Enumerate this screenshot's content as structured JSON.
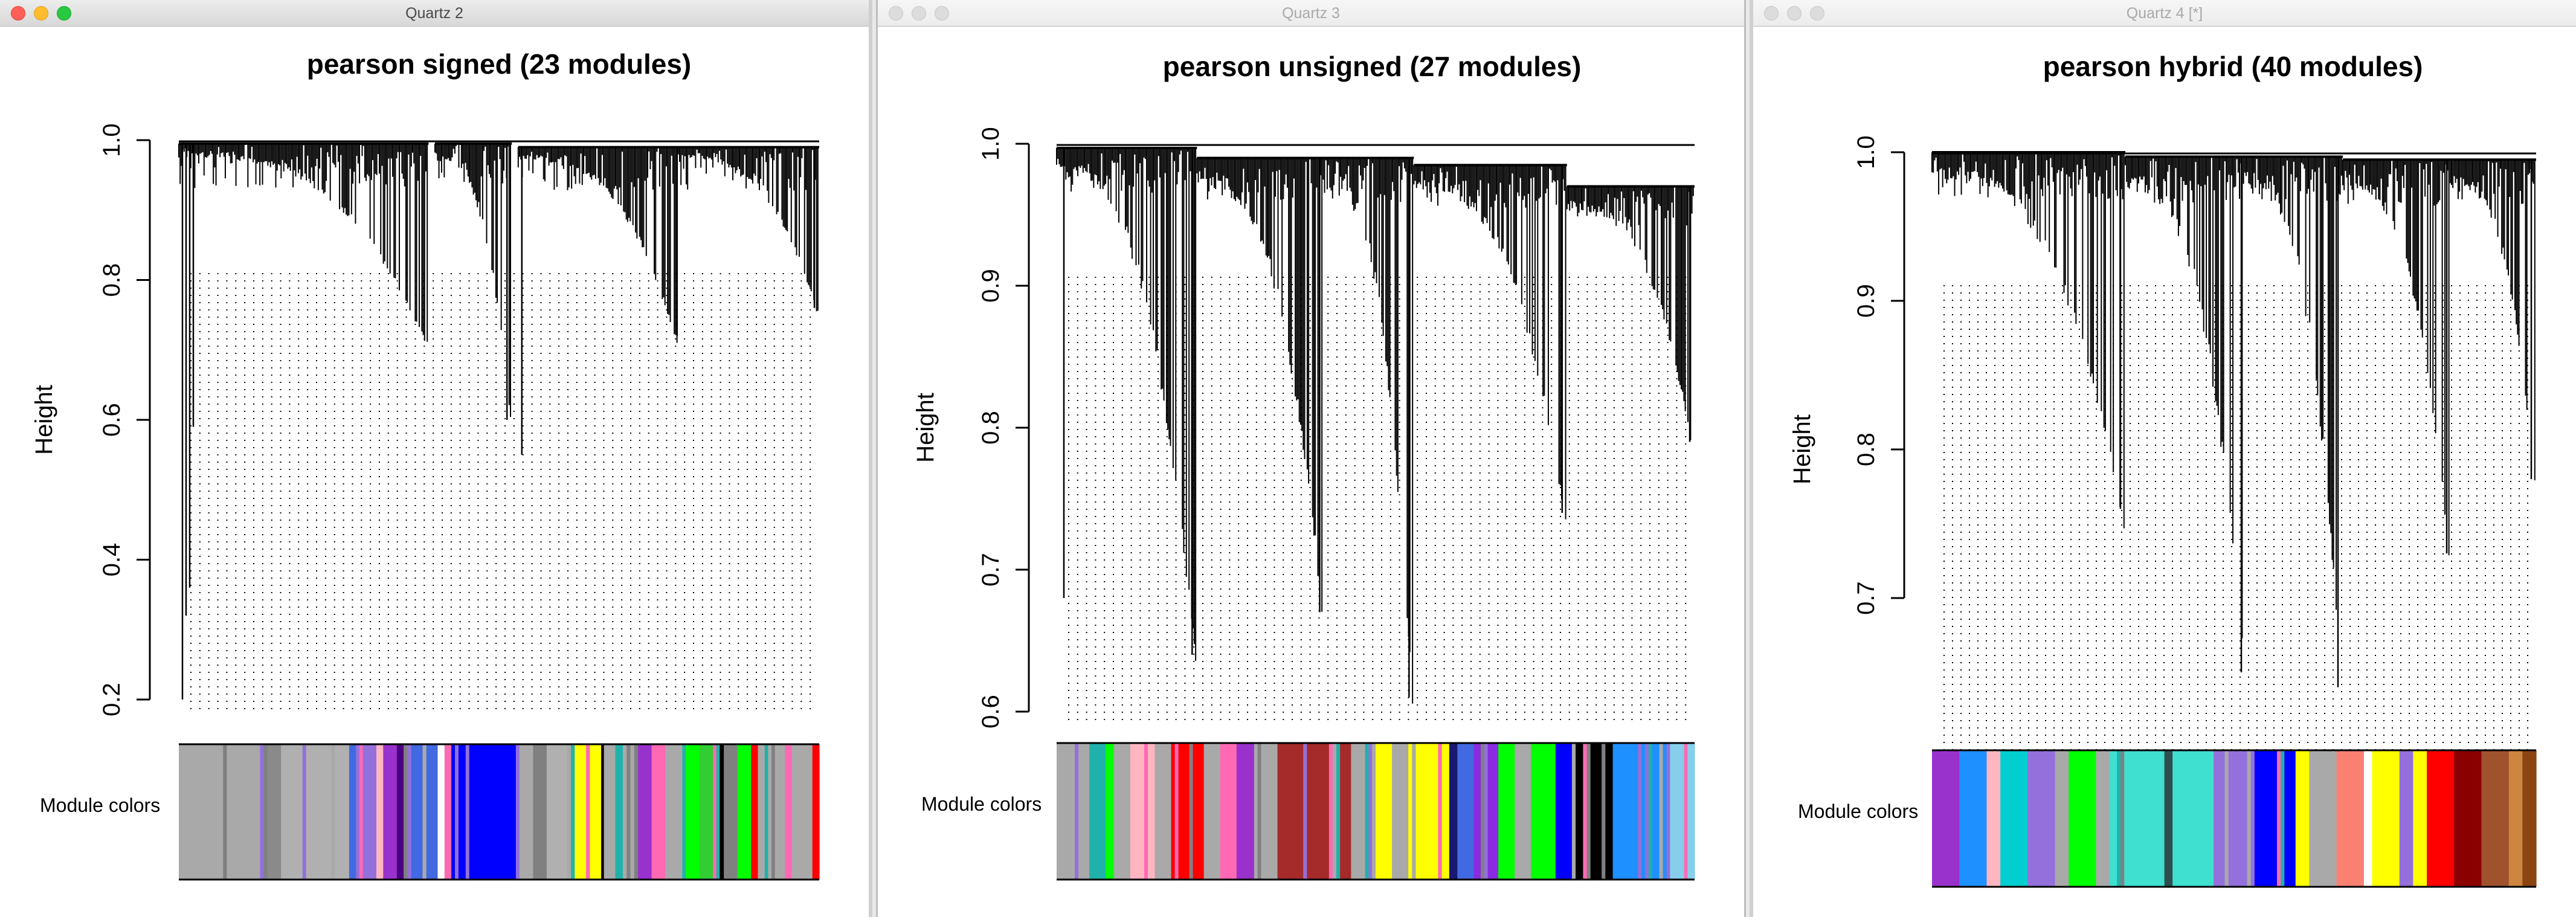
{
  "windows": [
    {
      "title": "Quartz 2",
      "active": true
    },
    {
      "title": "Quartz 3",
      "active": false
    },
    {
      "title": "Quartz 4 [*]",
      "active": false
    }
  ],
  "chart_data": [
    {
      "type": "dendrogram",
      "title": "pearson signed (23 modules)",
      "ylabel": "Height",
      "ylim": [
        0.2,
        1.0
      ],
      "yticks": [
        "0.2",
        "0.4",
        "0.6",
        "0.8",
        "1.0"
      ],
      "yticks_values": [
        0.2,
        0.4,
        0.6,
        0.8,
        1.0
      ],
      "color_bar_label": "Module colors",
      "leaf_height_range": [
        0.2,
        1.0
      ],
      "clusters": [
        {
          "start": 0.0,
          "end": 0.39,
          "top": 0.995,
          "low": 0.72,
          "deep": [
            0.2,
            0.32,
            0.36,
            0.59
          ]
        },
        {
          "start": 0.4,
          "end": 0.52,
          "top": 0.995,
          "low": 0.6,
          "deep": [
            0.6
          ]
        },
        {
          "start": 0.53,
          "end": 0.78,
          "top": 0.99,
          "low": 0.72,
          "deep": [
            0.55,
            0.72
          ]
        },
        {
          "start": 0.78,
          "end": 1.0,
          "top": 0.99,
          "low": 0.76,
          "deep": [
            0.76
          ]
        }
      ],
      "module_colors": [
        {
          "color": "#a9a9a9",
          "w": 13
        },
        {
          "color": "#8a8a8a",
          "w": 2
        },
        {
          "color": "#b0b0b0",
          "w": 10
        },
        {
          "color": "#4169e1",
          "w": 1
        },
        {
          "color": "#9370db",
          "w": 3
        },
        {
          "color": "#ffb6c1",
          "w": 1
        },
        {
          "color": "#9932cc",
          "w": 2
        },
        {
          "color": "#4b0082",
          "w": 1
        },
        {
          "color": "#4169e1",
          "w": 5
        },
        {
          "color": "#ffffff",
          "w": 1
        },
        {
          "color": "#ff69b4",
          "w": 1
        },
        {
          "color": "#0000ff",
          "w": 10
        },
        {
          "color": "#a9a9a9",
          "w": 2
        },
        {
          "color": "#808080",
          "w": 2
        },
        {
          "color": "#b0b0b0",
          "w": 3
        },
        {
          "color": "#ffff00",
          "w": 5
        },
        {
          "color": "#000000",
          "w": 0.4
        },
        {
          "color": "#a9a9a9",
          "w": 5
        },
        {
          "color": "#9932cc",
          "w": 2
        },
        {
          "color": "#ff69b4",
          "w": 2
        },
        {
          "color": "#a9a9a9",
          "w": 3
        },
        {
          "color": "#00ff00",
          "w": 2
        },
        {
          "color": "#32cd32",
          "w": 3
        },
        {
          "color": "#000000",
          "w": 0.6
        },
        {
          "color": "#808080",
          "w": 2
        },
        {
          "color": "#00ff00",
          "w": 2
        },
        {
          "color": "#ff0000",
          "w": 1
        },
        {
          "color": "#a9a9a9",
          "w": 4
        },
        {
          "color": "#ff69b4",
          "w": 1
        },
        {
          "color": "#a9a9a9",
          "w": 3
        },
        {
          "color": "#ff0000",
          "w": 1
        }
      ]
    },
    {
      "type": "dendrogram",
      "title": "pearson unsigned (27 modules)",
      "ylabel": "Height",
      "ylim": [
        0.6,
        1.0
      ],
      "yticks": [
        "0.6",
        "0.7",
        "0.8",
        "0.9",
        "1.0"
      ],
      "yticks_values": [
        0.6,
        0.7,
        0.8,
        0.9,
        1.0
      ],
      "color_bar_label": "Module colors",
      "leaf_height_range": [
        0.6,
        1.0
      ],
      "clusters": [
        {
          "start": 0.0,
          "end": 0.22,
          "top": 0.997,
          "low": 0.64,
          "deep": [
            0.64,
            0.68
          ]
        },
        {
          "start": 0.22,
          "end": 0.42,
          "top": 0.99,
          "low": 0.67,
          "deep": [
            0.67
          ]
        },
        {
          "start": 0.42,
          "end": 0.56,
          "top": 0.99,
          "low": 0.61,
          "deep": [
            0.61
          ]
        },
        {
          "start": 0.56,
          "end": 0.8,
          "top": 0.985,
          "low": 0.74,
          "deep": [
            0.74
          ]
        },
        {
          "start": 0.8,
          "end": 1.0,
          "top": 0.97,
          "low": 0.79,
          "deep": [
            0.79
          ]
        }
      ],
      "module_colors": [
        {
          "color": "#a9a9a9",
          "w": 4
        },
        {
          "color": "#20b2aa",
          "w": 2
        },
        {
          "color": "#00ff00",
          "w": 1
        },
        {
          "color": "#a9a9a9",
          "w": 2
        },
        {
          "color": "#ffb6c1",
          "w": 3
        },
        {
          "color": "#a9a9a9",
          "w": 2
        },
        {
          "color": "#ff0000",
          "w": 4
        },
        {
          "color": "#a9a9a9",
          "w": 2
        },
        {
          "color": "#ff69b4",
          "w": 2
        },
        {
          "color": "#9932cc",
          "w": 3
        },
        {
          "color": "#a9a9a9",
          "w": 2
        },
        {
          "color": "#a52a2a",
          "w": 9
        },
        {
          "color": "#a9a9a9",
          "w": 3
        },
        {
          "color": "#ffff00",
          "w": 2
        },
        {
          "color": "#a9a9a9",
          "w": 2
        },
        {
          "color": "#ffff00",
          "w": 5
        },
        {
          "color": "#191970",
          "w": 1
        },
        {
          "color": "#4169e1",
          "w": 2
        },
        {
          "color": "#8a2be2",
          "w": 3
        },
        {
          "color": "#00ff00",
          "w": 2
        },
        {
          "color": "#a9a9a9",
          "w": 2
        },
        {
          "color": "#00ff00",
          "w": 3
        },
        {
          "color": "#0000ff",
          "w": 2
        },
        {
          "color": "#000000",
          "w": 5
        },
        {
          "color": "#1e90ff",
          "w": 7
        },
        {
          "color": "#87ceeb",
          "w": 3
        }
      ]
    },
    {
      "type": "dendrogram",
      "title": "pearson hybrid (40 modules)",
      "ylabel": "Height",
      "ylim": [
        0.6,
        1.0
      ],
      "yticks": [
        "0.7",
        "0.8",
        "0.9",
        "1.0"
      ],
      "yticks_values": [
        0.7,
        0.8,
        0.9,
        1.0
      ],
      "color_bar_label": "Module colors",
      "leaf_height_range": [
        0.6,
        1.0
      ],
      "clusters": [
        {
          "start": 0.0,
          "end": 0.32,
          "top": 1.0,
          "low": 0.76,
          "deep": [
            0.76
          ]
        },
        {
          "start": 0.32,
          "end": 0.52,
          "top": 0.997,
          "low": 0.65,
          "deep": [
            0.65
          ]
        },
        {
          "start": 0.52,
          "end": 0.68,
          "top": 0.997,
          "low": 0.64,
          "deep": [
            0.64
          ]
        },
        {
          "start": 0.68,
          "end": 0.86,
          "top": 0.995,
          "low": 0.73,
          "deep": [
            0.73
          ]
        },
        {
          "start": 0.86,
          "end": 1.0,
          "top": 0.995,
          "low": 0.78,
          "deep": [
            0.78
          ]
        }
      ],
      "module_colors": [
        {
          "color": "#9932cc",
          "w": 2
        },
        {
          "color": "#1e90ff",
          "w": 2
        },
        {
          "color": "#ffb6c1",
          "w": 1
        },
        {
          "color": "#00ced1",
          "w": 2
        },
        {
          "color": "#9370db",
          "w": 2
        },
        {
          "color": "#a9a9a9",
          "w": 1
        },
        {
          "color": "#00ff00",
          "w": 2
        },
        {
          "color": "#a9a9a9",
          "w": 1
        },
        {
          "color": "#40e0d0",
          "w": 4
        },
        {
          "color": "#2f4f4f",
          "w": 0.6
        },
        {
          "color": "#40e0d0",
          "w": 3
        },
        {
          "color": "#9370db",
          "w": 3
        },
        {
          "color": "#0000ff",
          "w": 3
        },
        {
          "color": "#ffff00",
          "w": 1
        },
        {
          "color": "#a9a9a9",
          "w": 2
        },
        {
          "color": "#fa8072",
          "w": 2
        },
        {
          "color": "#ffffff",
          "w": 0.6
        },
        {
          "color": "#ffff00",
          "w": 2
        },
        {
          "color": "#9370db",
          "w": 1
        },
        {
          "color": "#ffff00",
          "w": 1
        },
        {
          "color": "#ff0000",
          "w": 2
        },
        {
          "color": "#8b0000",
          "w": 2
        },
        {
          "color": "#a0522d",
          "w": 2
        },
        {
          "color": "#cd853f",
          "w": 1
        },
        {
          "color": "#8b4513",
          "w": 1
        }
      ]
    }
  ]
}
